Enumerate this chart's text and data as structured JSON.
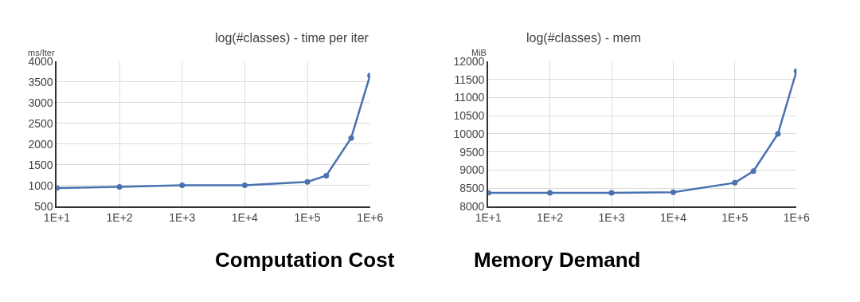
{
  "chart_data": [
    {
      "type": "line",
      "title": "log(#classes) - time per iter",
      "ylabel": "ms/Iter",
      "annotations": [
        "Computation Cost"
      ],
      "x": [
        10,
        100,
        1000,
        10000,
        100000,
        200000,
        500000,
        1000000
      ],
      "series": [
        {
          "color": "#4a72b0",
          "values": [
            940,
            970,
            1010,
            1010,
            1090,
            1240,
            2150,
            3660
          ]
        }
      ],
      "log": "x",
      "xlim": [
        10,
        1000000
      ],
      "xticks": [
        {
          "value": 10,
          "label": "1E+1"
        },
        {
          "value": 100,
          "label": "1E+2"
        },
        {
          "value": 1000,
          "label": "1E+3"
        },
        {
          "value": 10000,
          "label": "1E+4"
        },
        {
          "value": 100000,
          "label": "1E+5"
        },
        {
          "value": 1000000,
          "label": "1E+6"
        }
      ],
      "ylim": [
        500,
        4000
      ],
      "yticks": [
        500,
        1000,
        1500,
        2000,
        2500,
        3000,
        3500,
        4000
      ],
      "grid": true,
      "marker": "circle",
      "line_style": "solid"
    },
    {
      "type": "line",
      "title": "log(#classes) - mem",
      "ylabel": "MiB",
      "annotations": [
        "Memory Demand"
      ],
      "x": [
        10,
        100,
        1000,
        10000,
        100000,
        200000,
        500000,
        1000000
      ],
      "series": [
        {
          "color": "#4a72b0",
          "values": [
            8370,
            8370,
            8370,
            8390,
            8650,
            8970,
            10000,
            11730
          ]
        }
      ],
      "log": "x",
      "xlim": [
        10,
        1000000
      ],
      "xticks": [
        {
          "value": 10,
          "label": "1E+1"
        },
        {
          "value": 100,
          "label": "1E+2"
        },
        {
          "value": 1000,
          "label": "1E+3"
        },
        {
          "value": 10000,
          "label": "1E+4"
        },
        {
          "value": 100000,
          "label": "1E+5"
        },
        {
          "value": 1000000,
          "label": "1E+6"
        }
      ],
      "ylim": [
        8000,
        12000
      ],
      "yticks": [
        8000,
        8500,
        9000,
        9500,
        10000,
        10500,
        11000,
        11500,
        12000
      ],
      "grid": true,
      "marker": "circle",
      "line_style": "solid"
    }
  ]
}
